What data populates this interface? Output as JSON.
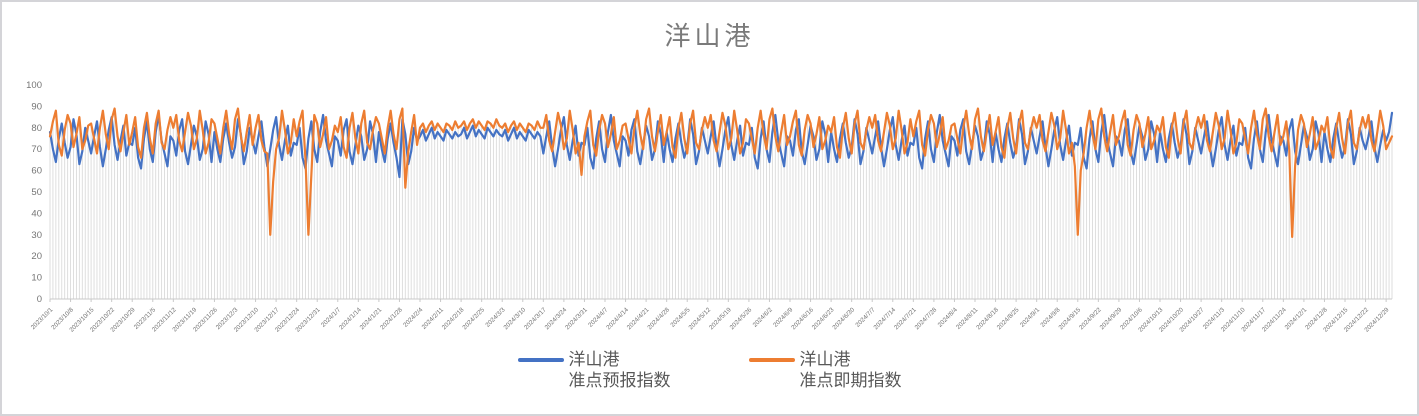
{
  "chart_data": {
    "type": "line",
    "title": "洋山港",
    "x_start_date": "2023/10/1",
    "x_end_date": "2024/12/31",
    "x_frequency": "daily",
    "x_tick_interval_days": 7,
    "x_tick_labels": [
      "2023/10/1",
      "2023/10/8",
      "2023/10/15",
      "2023/10/22",
      "2023/10/29",
      "2023/11/5",
      "2023/11/12",
      "2023/11/19",
      "2023/11/26",
      "2023/12/3",
      "2023/12/10",
      "2023/12/17",
      "2023/12/24",
      "2023/12/31",
      "2024/1/7",
      "2024/1/14",
      "2024/1/21",
      "2024/1/28",
      "2024/2/4",
      "2024/2/11",
      "2024/2/18",
      "2024/2/25",
      "2024/3/3",
      "2024/3/10",
      "2024/3/17",
      "2024/3/24",
      "2024/3/31",
      "2024/4/7",
      "2024/4/14",
      "2024/4/21",
      "2024/4/28",
      "2024/5/5",
      "2024/5/12",
      "2024/5/19",
      "2024/5/26",
      "2024/6/2",
      "2024/6/9",
      "2024/6/16",
      "2024/6/23",
      "2024/6/30",
      "2024/7/7",
      "2024/7/14",
      "2024/7/21",
      "2024/7/28",
      "2024/8/4",
      "2024/8/11",
      "2024/8/18",
      "2024/8/25",
      "2024/9/1",
      "2024/9/8",
      "2024/9/15",
      "2024/9/22",
      "2024/9/29",
      "2024/10/6",
      "2024/10/13",
      "2024/10/20",
      "2024/10/27",
      "2024/11/3",
      "2024/11/10",
      "2024/11/17",
      "2024/11/24",
      "2024/12/1",
      "2024/12/8",
      "2024/12/15",
      "2024/12/22",
      "2024/12/29"
    ],
    "ylim": [
      0,
      100
    ],
    "y_ticks": [
      0,
      10,
      20,
      30,
      40,
      50,
      60,
      70,
      80,
      90,
      100
    ],
    "grid": "vertical-droplines-per-day",
    "legend_position": "bottom",
    "colors": {
      "dropline": "#DBDBDB",
      "axis": "#C9C9C9",
      "tick_text": "#757575",
      "title_text": "#7A7A7A",
      "legend_text": "#595959"
    },
    "series": [
      {
        "name": "洋山港 准点预报指数",
        "legend_line1": "洋山港",
        "legend_line2": "准点预报指数",
        "color": "#4472C4",
        "values": [
          78,
          70,
          64,
          75,
          82,
          73,
          66,
          71,
          84,
          77,
          63,
          69,
          80,
          74,
          68,
          76,
          83,
          71,
          62,
          70,
          79,
          85,
          72,
          65,
          74,
          81,
          67,
          73,
          72,
          80,
          66,
          61,
          75,
          83,
          70,
          64,
          78,
          86,
          74,
          68,
          62,
          76,
          74,
          67,
          79,
          84,
          69,
          63,
          72,
          81,
          76,
          65,
          70,
          83,
          77,
          64,
          78,
          70,
          64,
          75,
          82,
          73,
          66,
          71,
          84,
          77,
          63,
          69,
          80,
          74,
          68,
          76,
          83,
          71,
          62,
          70,
          79,
          85,
          72,
          65,
          74,
          81,
          67,
          73,
          72,
          80,
          66,
          61,
          75,
          83,
          70,
          64,
          78,
          86,
          74,
          68,
          62,
          76,
          74,
          67,
          79,
          84,
          69,
          63,
          72,
          81,
          76,
          65,
          70,
          83,
          77,
          64,
          78,
          70,
          64,
          75,
          82,
          73,
          66,
          57,
          84,
          77,
          63,
          69,
          80,
          74,
          76,
          79,
          74,
          77,
          80,
          75,
          78,
          76,
          74,
          79,
          77,
          75,
          78,
          76,
          77,
          80,
          75,
          78,
          81,
          76,
          79,
          77,
          75,
          80,
          78,
          76,
          79,
          77,
          76,
          79,
          74,
          77,
          80,
          75,
          78,
          76,
          74,
          79,
          77,
          75,
          78,
          76,
          68,
          76,
          83,
          71,
          62,
          70,
          79,
          85,
          72,
          65,
          74,
          81,
          67,
          73,
          72,
          80,
          66,
          61,
          75,
          83,
          70,
          64,
          78,
          86,
          74,
          68,
          62,
          76,
          74,
          67,
          79,
          84,
          69,
          63,
          72,
          81,
          76,
          65,
          70,
          83,
          77,
          64,
          78,
          70,
          64,
          75,
          82,
          73,
          66,
          71,
          84,
          77,
          63,
          69,
          80,
          74,
          68,
          76,
          83,
          71,
          62,
          70,
          79,
          85,
          72,
          65,
          74,
          81,
          67,
          73,
          72,
          80,
          66,
          61,
          75,
          83,
          70,
          64,
          78,
          86,
          74,
          68,
          62,
          76,
          74,
          67,
          79,
          84,
          69,
          63,
          72,
          81,
          76,
          65,
          70,
          83,
          77,
          64,
          78,
          70,
          64,
          75,
          82,
          73,
          66,
          71,
          84,
          77,
          63,
          69,
          80,
          74,
          68,
          76,
          83,
          71,
          62,
          70,
          79,
          85,
          72,
          65,
          74,
          81,
          67,
          73,
          72,
          80,
          66,
          61,
          75,
          83,
          70,
          64,
          78,
          86,
          74,
          68,
          62,
          76,
          74,
          67,
          79,
          84,
          69,
          63,
          72,
          81,
          76,
          65,
          70,
          83,
          77,
          64,
          78,
          70,
          64,
          75,
          82,
          73,
          66,
          71,
          84,
          77,
          63,
          69,
          80,
          74,
          68,
          76,
          83,
          71,
          62,
          70,
          79,
          85,
          72,
          65,
          74,
          81,
          67,
          73,
          72,
          80,
          66,
          61,
          75,
          83,
          70,
          64,
          78,
          86,
          74,
          68,
          62,
          76,
          74,
          67,
          79,
          84,
          69,
          63,
          72,
          81,
          76,
          65,
          70,
          83,
          77,
          64,
          78,
          70,
          64,
          75,
          82,
          73,
          66,
          71,
          84,
          77,
          63,
          69,
          80,
          74,
          68,
          76,
          83,
          71,
          62,
          70,
          79,
          85,
          72,
          65,
          74,
          81,
          67,
          73,
          72,
          80,
          66,
          61,
          75,
          83,
          70,
          64,
          78,
          86,
          74,
          68,
          62,
          76,
          74,
          67,
          79,
          84,
          69,
          63,
          72,
          81,
          76,
          65,
          70,
          83,
          77,
          64,
          78,
          70,
          64,
          75,
          82,
          73,
          66,
          71,
          84,
          77,
          63,
          69,
          80,
          74,
          70,
          76,
          83,
          71,
          64,
          72,
          79,
          74,
          78,
          87
        ]
      },
      {
        "name": "洋山港 准点即期指数",
        "legend_line1": "洋山港",
        "legend_line2": "准点即期指数",
        "color": "#ED7D31",
        "values": [
          76,
          83,
          88,
          72,
          67,
          79,
          86,
          82,
          71,
          77,
          85,
          70,
          74,
          81,
          82,
          75,
          68,
          80,
          88,
          77,
          70,
          84,
          89,
          76,
          69,
          78,
          86,
          72,
          78,
          85,
          71,
          66,
          80,
          87,
          75,
          68,
          82,
          88,
          73,
          70,
          79,
          85,
          80,
          86,
          74,
          69,
          78,
          87,
          81,
          70,
          75,
          88,
          79,
          68,
          73,
          84,
          82,
          75,
          68,
          80,
          88,
          77,
          70,
          84,
          89,
          76,
          69,
          78,
          86,
          72,
          80,
          86,
          74,
          69,
          68,
          30,
          55,
          70,
          75,
          88,
          79,
          68,
          73,
          84,
          76,
          83,
          88,
          65,
          30,
          58,
          86,
          82,
          71,
          77,
          85,
          70,
          74,
          81,
          78,
          85,
          71,
          66,
          80,
          87,
          75,
          68,
          82,
          88,
          73,
          70,
          79,
          85,
          82,
          75,
          68,
          80,
          88,
          77,
          70,
          84,
          89,
          52,
          69,
          78,
          86,
          72,
          80,
          82,
          78,
          81,
          83,
          79,
          82,
          80,
          78,
          82,
          81,
          79,
          83,
          80,
          81,
          83,
          79,
          82,
          84,
          80,
          83,
          81,
          79,
          83,
          82,
          80,
          84,
          81,
          80,
          82,
          78,
          81,
          83,
          79,
          82,
          80,
          78,
          82,
          81,
          79,
          83,
          80,
          80,
          86,
          74,
          69,
          78,
          87,
          81,
          70,
          75,
          88,
          79,
          68,
          73,
          58,
          76,
          83,
          88,
          72,
          67,
          79,
          86,
          82,
          71,
          77,
          85,
          70,
          74,
          81,
          82,
          75,
          68,
          80,
          88,
          77,
          70,
          84,
          89,
          76,
          69,
          78,
          86,
          72,
          78,
          85,
          71,
          66,
          80,
          87,
          75,
          68,
          82,
          88,
          73,
          70,
          79,
          85,
          80,
          86,
          74,
          69,
          78,
          87,
          81,
          70,
          75,
          88,
          79,
          68,
          73,
          84,
          82,
          75,
          68,
          80,
          88,
          77,
          70,
          84,
          89,
          76,
          69,
          78,
          86,
          72,
          76,
          83,
          88,
          72,
          67,
          79,
          86,
          82,
          71,
          77,
          85,
          70,
          74,
          81,
          78,
          85,
          71,
          66,
          80,
          87,
          75,
          68,
          82,
          88,
          73,
          70,
          79,
          85,
          80,
          86,
          74,
          69,
          78,
          87,
          81,
          70,
          75,
          88,
          79,
          68,
          73,
          84,
          76,
          83,
          88,
          72,
          67,
          79,
          86,
          82,
          71,
          77,
          85,
          70,
          74,
          81,
          82,
          75,
          68,
          80,
          88,
          77,
          70,
          84,
          89,
          76,
          69,
          78,
          86,
          72,
          78,
          85,
          71,
          66,
          80,
          87,
          75,
          68,
          82,
          88,
          73,
          70,
          79,
          85,
          80,
          86,
          74,
          69,
          78,
          87,
          81,
          70,
          75,
          88,
          79,
          68,
          73,
          62,
          30,
          60,
          68,
          80,
          88,
          77,
          70,
          84,
          89,
          76,
          69,
          78,
          86,
          72,
          76,
          83,
          88,
          72,
          67,
          79,
          86,
          82,
          71,
          77,
          85,
          70,
          74,
          81,
          78,
          85,
          71,
          66,
          80,
          87,
          75,
          68,
          82,
          88,
          73,
          70,
          79,
          85,
          80,
          86,
          74,
          69,
          78,
          87,
          81,
          70,
          75,
          88,
          79,
          68,
          73,
          84,
          82,
          75,
          68,
          80,
          88,
          77,
          70,
          84,
          89,
          76,
          69,
          78,
          86,
          72,
          76,
          83,
          70,
          29,
          62,
          79,
          86,
          82,
          71,
          77,
          85,
          70,
          74,
          81,
          78,
          85,
          71,
          66,
          80,
          87,
          75,
          68,
          82,
          88,
          73,
          70,
          79,
          85,
          80,
          86,
          74,
          69,
          78,
          88,
          81,
          70,
          73,
          76
        ]
      }
    ]
  }
}
